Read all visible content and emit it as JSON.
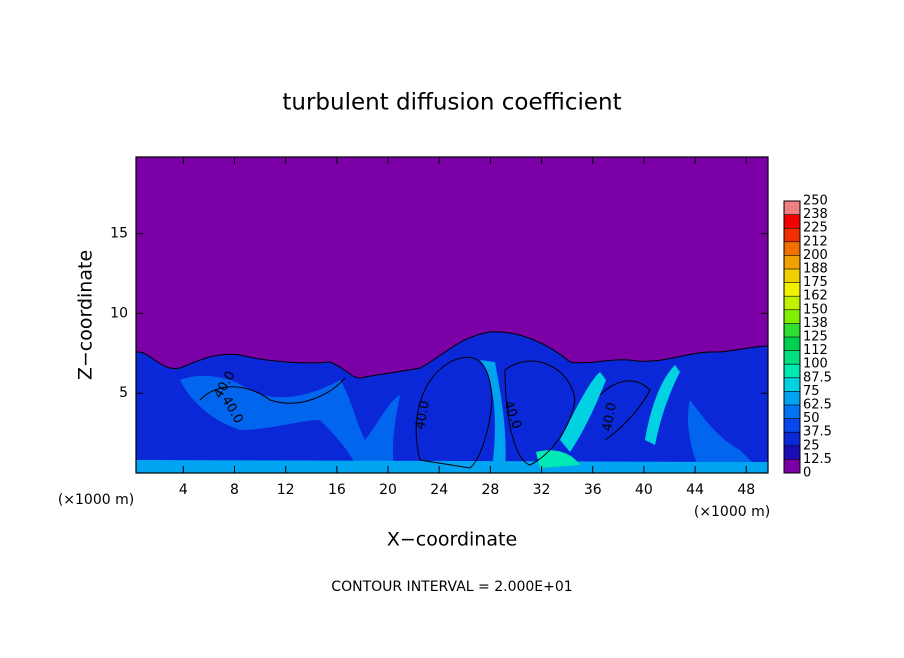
{
  "chart_data": {
    "type": "contour",
    "title": "turbulent diffusion coefficient",
    "xlabel": "X−coordinate",
    "ylabel": "Z−coordinate",
    "x_unit_label": "(×1000 m)",
    "annotation": "CONTOUR INTERVAL = 2.000E+01",
    "xlim": [
      0.3,
      49.7
    ],
    "ylim": [
      0,
      19.8
    ],
    "xticks": [
      4,
      8,
      12,
      16,
      20,
      24,
      28,
      32,
      36,
      40,
      44,
      48
    ],
    "yticks": [
      5,
      10,
      15
    ],
    "contour_labels": [
      "40.0",
      "40.0",
      "40.0",
      "40.0",
      "40.0"
    ],
    "colorbar": {
      "levels": [
        0,
        12.5,
        25,
        37.5,
        50,
        62.5,
        75,
        87.5,
        100,
        {
          "value": 112.5,
          "label": "112"
        },
        125,
        {
          "value": 137.5,
          "label": "138"
        },
        150,
        {
          "value": 162.5,
          "label": "162"
        },
        175,
        {
          "value": 187.5,
          "label": "188"
        },
        200,
        {
          "value": 212.5,
          "label": "212"
        },
        225,
        {
          "value": 237.5,
          "label": "238"
        },
        250
      ],
      "colors": [
        "#7b00a6",
        "#1c0cb4",
        "#0a28d8",
        "#0848f0",
        "#0074f4",
        "#00a4f0",
        "#00d2e2",
        "#00e8b4",
        "#00e080",
        "#00d050",
        "#30e030",
        "#80f000",
        "#c0f000",
        "#f0f000",
        "#f0d000",
        "#f0a000",
        "#f07000",
        "#f03000",
        "#f00000",
        "#f08080"
      ]
    }
  }
}
